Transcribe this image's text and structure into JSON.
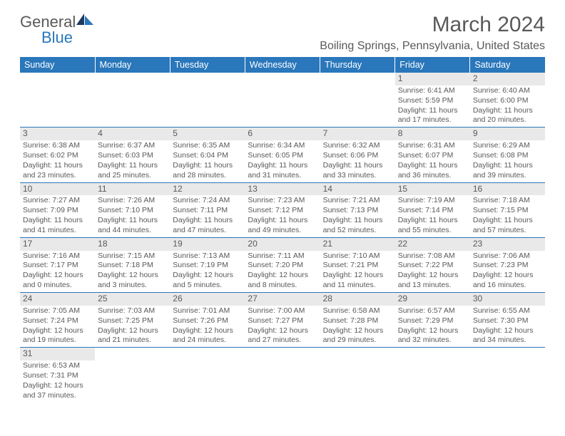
{
  "brand": {
    "part1": "General",
    "part2": "Blue"
  },
  "title": "March 2024",
  "location": "Boiling Springs, Pennsylvania, United States",
  "colors": {
    "accent": "#2a77bb",
    "text": "#595959",
    "daynum_bg": "#e9e9e9"
  },
  "day_headers": [
    "Sunday",
    "Monday",
    "Tuesday",
    "Wednesday",
    "Thursday",
    "Friday",
    "Saturday"
  ],
  "weeks": [
    [
      null,
      null,
      null,
      null,
      null,
      {
        "n": "1",
        "sr": "6:41 AM",
        "ss": "5:59 PM",
        "dl": "11 hours and 17 minutes."
      },
      {
        "n": "2",
        "sr": "6:40 AM",
        "ss": "6:00 PM",
        "dl": "11 hours and 20 minutes."
      }
    ],
    [
      {
        "n": "3",
        "sr": "6:38 AM",
        "ss": "6:02 PM",
        "dl": "11 hours and 23 minutes."
      },
      {
        "n": "4",
        "sr": "6:37 AM",
        "ss": "6:03 PM",
        "dl": "11 hours and 25 minutes."
      },
      {
        "n": "5",
        "sr": "6:35 AM",
        "ss": "6:04 PM",
        "dl": "11 hours and 28 minutes."
      },
      {
        "n": "6",
        "sr": "6:34 AM",
        "ss": "6:05 PM",
        "dl": "11 hours and 31 minutes."
      },
      {
        "n": "7",
        "sr": "6:32 AM",
        "ss": "6:06 PM",
        "dl": "11 hours and 33 minutes."
      },
      {
        "n": "8",
        "sr": "6:31 AM",
        "ss": "6:07 PM",
        "dl": "11 hours and 36 minutes."
      },
      {
        "n": "9",
        "sr": "6:29 AM",
        "ss": "6:08 PM",
        "dl": "11 hours and 39 minutes."
      }
    ],
    [
      {
        "n": "10",
        "sr": "7:27 AM",
        "ss": "7:09 PM",
        "dl": "11 hours and 41 minutes."
      },
      {
        "n": "11",
        "sr": "7:26 AM",
        "ss": "7:10 PM",
        "dl": "11 hours and 44 minutes."
      },
      {
        "n": "12",
        "sr": "7:24 AM",
        "ss": "7:11 PM",
        "dl": "11 hours and 47 minutes."
      },
      {
        "n": "13",
        "sr": "7:23 AM",
        "ss": "7:12 PM",
        "dl": "11 hours and 49 minutes."
      },
      {
        "n": "14",
        "sr": "7:21 AM",
        "ss": "7:13 PM",
        "dl": "11 hours and 52 minutes."
      },
      {
        "n": "15",
        "sr": "7:19 AM",
        "ss": "7:14 PM",
        "dl": "11 hours and 55 minutes."
      },
      {
        "n": "16",
        "sr": "7:18 AM",
        "ss": "7:15 PM",
        "dl": "11 hours and 57 minutes."
      }
    ],
    [
      {
        "n": "17",
        "sr": "7:16 AM",
        "ss": "7:17 PM",
        "dl": "12 hours and 0 minutes."
      },
      {
        "n": "18",
        "sr": "7:15 AM",
        "ss": "7:18 PM",
        "dl": "12 hours and 3 minutes."
      },
      {
        "n": "19",
        "sr": "7:13 AM",
        "ss": "7:19 PM",
        "dl": "12 hours and 5 minutes."
      },
      {
        "n": "20",
        "sr": "7:11 AM",
        "ss": "7:20 PM",
        "dl": "12 hours and 8 minutes."
      },
      {
        "n": "21",
        "sr": "7:10 AM",
        "ss": "7:21 PM",
        "dl": "12 hours and 11 minutes."
      },
      {
        "n": "22",
        "sr": "7:08 AM",
        "ss": "7:22 PM",
        "dl": "12 hours and 13 minutes."
      },
      {
        "n": "23",
        "sr": "7:06 AM",
        "ss": "7:23 PM",
        "dl": "12 hours and 16 minutes."
      }
    ],
    [
      {
        "n": "24",
        "sr": "7:05 AM",
        "ss": "7:24 PM",
        "dl": "12 hours and 19 minutes."
      },
      {
        "n": "25",
        "sr": "7:03 AM",
        "ss": "7:25 PM",
        "dl": "12 hours and 21 minutes."
      },
      {
        "n": "26",
        "sr": "7:01 AM",
        "ss": "7:26 PM",
        "dl": "12 hours and 24 minutes."
      },
      {
        "n": "27",
        "sr": "7:00 AM",
        "ss": "7:27 PM",
        "dl": "12 hours and 27 minutes."
      },
      {
        "n": "28",
        "sr": "6:58 AM",
        "ss": "7:28 PM",
        "dl": "12 hours and 29 minutes."
      },
      {
        "n": "29",
        "sr": "6:57 AM",
        "ss": "7:29 PM",
        "dl": "12 hours and 32 minutes."
      },
      {
        "n": "30",
        "sr": "6:55 AM",
        "ss": "7:30 PM",
        "dl": "12 hours and 34 minutes."
      }
    ],
    [
      {
        "n": "31",
        "sr": "6:53 AM",
        "ss": "7:31 PM",
        "dl": "12 hours and 37 minutes."
      },
      null,
      null,
      null,
      null,
      null,
      null
    ]
  ],
  "labels": {
    "sunrise": "Sunrise: ",
    "sunset": "Sunset: ",
    "daylight": "Daylight: "
  }
}
